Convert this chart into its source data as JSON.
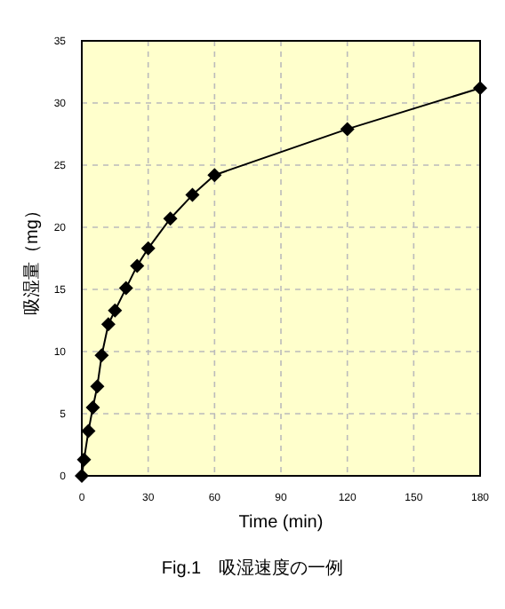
{
  "chart_data": {
    "type": "line",
    "xlabel": "Time (min)",
    "ylabel": "吸湿量（mg）",
    "annotations": [
      "Fig.1　吸湿速度の一例"
    ],
    "x": [
      0,
      1,
      3,
      5,
      7,
      9,
      12,
      15,
      20,
      25,
      30,
      40,
      50,
      60,
      120,
      180
    ],
    "values": [
      0,
      1.3,
      3.6,
      5.5,
      7.2,
      9.7,
      12.2,
      13.3,
      15.1,
      16.9,
      18.3,
      20.7,
      22.6,
      24.2,
      27.9,
      31.2
    ],
    "color": "#000000",
    "marker": "diamond",
    "line_style": "solid",
    "grid": true,
    "xlim": [
      0,
      180
    ],
    "xticks": [
      0,
      30,
      60,
      90,
      120,
      150,
      180
    ],
    "ylim": [
      0,
      35
    ],
    "yticks": [
      0,
      5,
      10,
      15,
      20,
      25,
      30,
      35
    ]
  }
}
